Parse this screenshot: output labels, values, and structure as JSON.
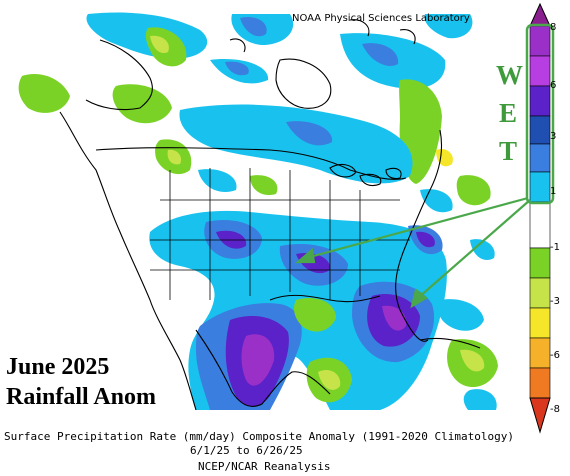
{
  "credit": "NOAA Physical Sciences Laboratory",
  "overlay_title": {
    "line1": "June 2025",
    "line2": "Rainfall Anom"
  },
  "wet_label": [
    "W",
    "E",
    "T"
  ],
  "caption": {
    "line1": "Surface Precipitation Rate (mm/day) Composite Anomaly (1991-2020 Climatology)",
    "line2": "6/1/25  to 6/26/25",
    "line3": "NCEP/NCAR Reanalysis"
  },
  "colorbar": {
    "tick_labels": [
      "8",
      "6",
      "3",
      "1",
      "-1",
      "-3",
      "-6",
      "-8"
    ],
    "colors": {
      "purple_dark": "#8a2090",
      "purple": "#9b30c8",
      "violet": "#5a22c8",
      "blue_dark": "#1f4fb0",
      "blue": "#3a7fe0",
      "cyan": "#19c2ee",
      "white": "#ffffff",
      "green": "#7bd227",
      "yellowgreen": "#c6e34a",
      "yellow": "#f5e629",
      "orange_yellow": "#f6b12a",
      "orange": "#f07a22",
      "red": "#d9381f"
    }
  },
  "annotation_color": "#4aa84a"
}
